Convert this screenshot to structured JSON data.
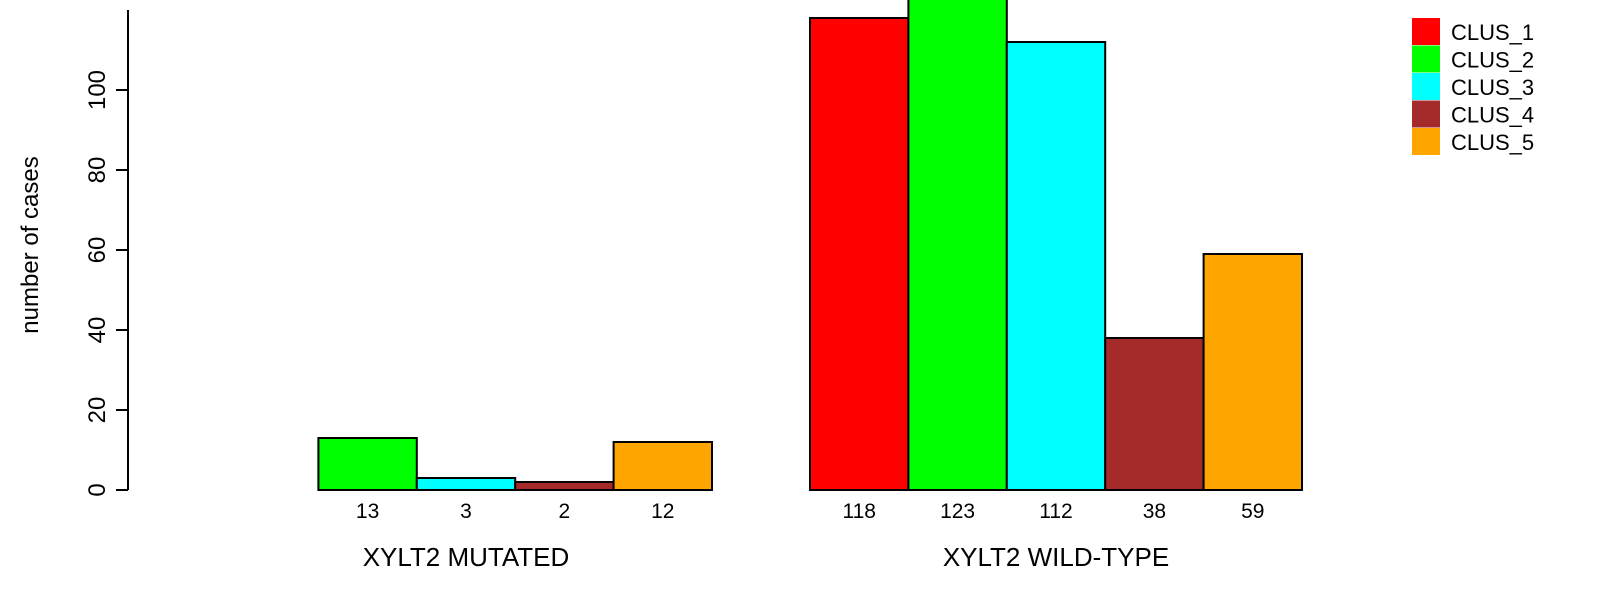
{
  "chart_data": {
    "type": "bar",
    "ylabel": "number of cases",
    "ylim": [
      0,
      120
    ],
    "yticks": [
      0,
      20,
      40,
      60,
      80,
      100
    ],
    "groups": [
      "XYLT2 MUTATED",
      "XYLT2 WILD-TYPE"
    ],
    "series": [
      {
        "name": "CLUS_1",
        "color": "#ff0000",
        "values": [
          0,
          118
        ]
      },
      {
        "name": "CLUS_2",
        "color": "#00ff00",
        "values": [
          13,
          123
        ]
      },
      {
        "name": "CLUS_3",
        "color": "#00ffff",
        "values": [
          3,
          112
        ]
      },
      {
        "name": "CLUS_4",
        "color": "#a52a2a",
        "values": [
          2,
          38
        ]
      },
      {
        "name": "CLUS_5",
        "color": "#ffa500",
        "values": [
          12,
          59
        ]
      }
    ],
    "bar_labels": [
      [
        "",
        "13",
        "3",
        "2",
        "12"
      ],
      [
        "118",
        "123",
        "112",
        "38",
        "59"
      ]
    ],
    "legend_position": "top-right"
  }
}
